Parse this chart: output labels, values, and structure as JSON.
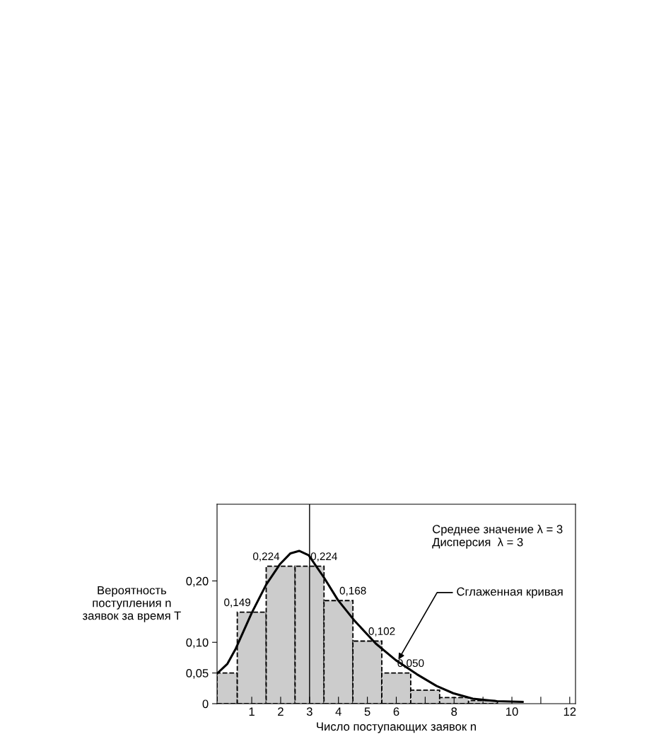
{
  "chart_data": {
    "type": "histogram",
    "xlabel": "Число поступающих заявок n",
    "ylabel": "Вероятность\nпоступления n\nзаявок за время T",
    "xlim": [
      -0.2,
      12.2
    ],
    "ylim": [
      0,
      0.325
    ],
    "xticks": [
      1,
      2,
      3,
      4,
      5,
      6,
      {
        "value": 7,
        "label": null
      },
      8,
      {
        "value": 9,
        "label": null
      },
      10,
      {
        "value": 11,
        "label": null
      },
      12
    ],
    "yticks": [
      {
        "value": 0,
        "label": "0"
      },
      {
        "value": 0.05,
        "label": "0,05"
      },
      {
        "value": 0.1,
        "label": "0,10"
      },
      {
        "value": 0.2,
        "label": "0,20"
      }
    ],
    "grid": false,
    "series": [
      {
        "color": "#cccccc",
        "line_style": "dashed",
        "bins": [
          -0.2,
          0.5,
          1.5,
          2.5,
          3.5,
          4.5,
          5.5,
          6.5,
          7.5,
          8.5,
          9.5
        ],
        "values": [
          0.05,
          0.149,
          0.224,
          0.224,
          0.168,
          0.102,
          0.05,
          0.022,
          0.01,
          0.005
        ],
        "value_labels": [
          null,
          "0,149",
          "0,224",
          "0,224",
          "0,168",
          "0,102",
          "0,050",
          null,
          null,
          null
        ]
      },
      {
        "type": "line",
        "color": "#000000",
        "line_style": "solid",
        "x": [
          -0.2,
          0.16,
          0.45,
          1.0,
          1.5,
          1.97,
          2.34,
          2.64,
          2.97,
          3.52,
          3.98,
          4.56,
          5.29,
          5.98,
          6.71,
          7.39,
          7.97,
          8.65,
          9.49,
          10.37
        ],
        "values": [
          0.049,
          0.065,
          0.09,
          0.148,
          0.194,
          0.227,
          0.245,
          0.249,
          0.242,
          0.204,
          0.169,
          0.135,
          0.098,
          0.071,
          0.048,
          0.029,
          0.017,
          0.008,
          0.004,
          0.003
        ]
      }
    ],
    "ref_lines": [
      {
        "axis": "x",
        "value": 3,
        "color": "#000000"
      }
    ],
    "annotations": [
      "Среднее значение λ = 3",
      "Дисперсия  λ = 3",
      {
        "text": "Сглаженная кривая",
        "x": 6.04,
        "y": 0.069
      }
    ]
  }
}
